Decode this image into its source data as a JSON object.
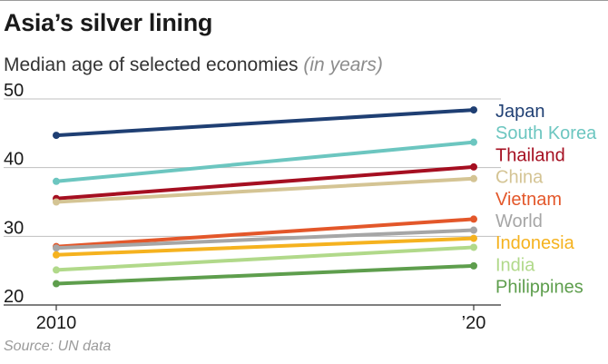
{
  "header": {
    "title": "Asia’s silver lining",
    "subtitle": "Median age of selected economies",
    "subtitle_note": "(in years)"
  },
  "footer": {
    "source": "Source: UN data"
  },
  "chart_data": {
    "type": "line",
    "title": "Asia’s silver lining",
    "subtitle": "Median age of selected economies (in years)",
    "xlabel": "",
    "ylabel": "",
    "categories": [
      "2010",
      "’20"
    ],
    "x_tick_labels": [
      "2010",
      "’20"
    ],
    "y_ticks": [
      "20",
      "30",
      "40",
      "50"
    ],
    "ylim": [
      20,
      50
    ],
    "grid": true,
    "legend": "right",
    "series": [
      {
        "name": "Japan",
        "values": [
          44.7,
          48.4
        ],
        "color": "#1f3f73"
      },
      {
        "name": "South Korea",
        "values": [
          38.0,
          43.7
        ],
        "color": "#6cc6c0"
      },
      {
        "name": "Thailand",
        "values": [
          35.5,
          40.1
        ],
        "color": "#a50f21"
      },
      {
        "name": "China",
        "values": [
          35.0,
          38.4
        ],
        "color": "#d4c494"
      },
      {
        "name": "Vietnam",
        "values": [
          28.5,
          32.5
        ],
        "color": "#e3572a"
      },
      {
        "name": "World",
        "values": [
          28.3,
          30.9
        ],
        "color": "#a6a6a6"
      },
      {
        "name": "Indonesia",
        "values": [
          27.3,
          29.7
        ],
        "color": "#f5b21f"
      },
      {
        "name": "India",
        "values": [
          25.1,
          28.4
        ],
        "color": "#b1d98a"
      },
      {
        "name": "Philippines",
        "values": [
          23.1,
          25.7
        ],
        "color": "#5e9e4d"
      }
    ]
  }
}
